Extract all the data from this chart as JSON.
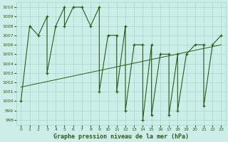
{
  "title": "Graphe pression niveau de la mer (hPa)",
  "bg_color": "#cceee8",
  "grid_color": "#aad4cc",
  "line_color": "#2d5a1b",
  "xlim": [
    -0.5,
    23.5
  ],
  "ylim": [
    997.5,
    1010.5
  ],
  "yticks": [
    998,
    999,
    1000,
    1001,
    1002,
    1003,
    1004,
    1005,
    1006,
    1007,
    1008,
    1009,
    1010
  ],
  "xticks": [
    0,
    1,
    2,
    3,
    4,
    5,
    6,
    7,
    8,
    9,
    10,
    11,
    12,
    13,
    14,
    15,
    16,
    17,
    18,
    19,
    20,
    21,
    22,
    23
  ],
  "pressure_x": [
    0,
    1,
    2,
    3,
    3,
    4,
    5,
    5,
    6,
    7,
    8,
    9,
    9,
    10,
    11,
    11,
    12,
    12,
    13,
    14,
    14,
    15,
    15,
    16,
    17,
    17,
    18,
    18,
    19,
    20,
    21,
    21,
    22,
    23
  ],
  "pressure_y": [
    1000,
    1008,
    1007,
    1009,
    1003,
    1008,
    1010,
    1008,
    1010,
    1010,
    1008,
    1010,
    1001,
    1007,
    1007,
    1001,
    1008,
    999,
    1006,
    1006,
    998,
    1006,
    998.5,
    1005,
    1005,
    998.5,
    1005,
    999,
    1005,
    1006,
    1006,
    999.5,
    1006,
    1007
  ],
  "trend_x": [
    0,
    23
  ],
  "trend_y": [
    1001.5,
    1006.0
  ]
}
